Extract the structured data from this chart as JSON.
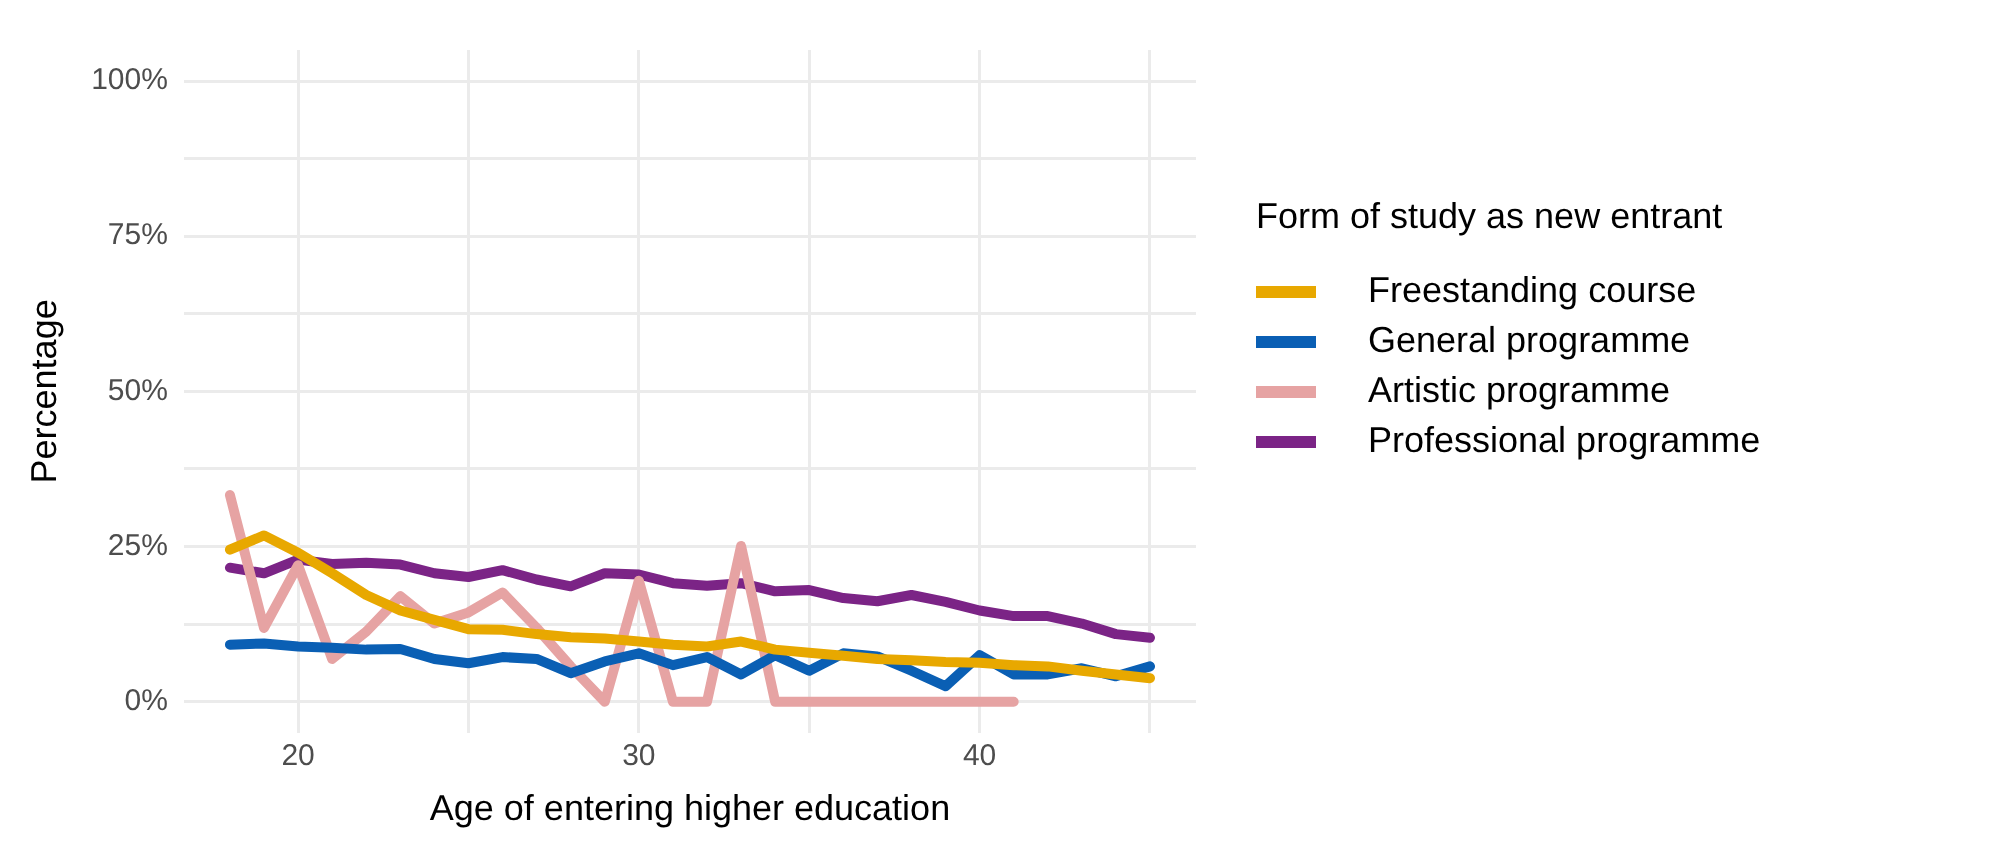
{
  "chart_data": {
    "type": "line",
    "xlabel": "Age of entering higher education",
    "ylabel": "Percentage",
    "legend_title": "Form of study as new entrant",
    "x": [
      18,
      19,
      20,
      21,
      22,
      23,
      24,
      25,
      26,
      27,
      28,
      29,
      30,
      31,
      32,
      33,
      34,
      35,
      36,
      37,
      38,
      39,
      40,
      41,
      42,
      43,
      44,
      45
    ],
    "series": [
      {
        "name": "Freestanding course",
        "color": "#e8a800",
        "values": [
          24.5,
          26.8,
          24,
          20.7,
          17.2,
          14.7,
          13.2,
          11.7,
          11.6,
          10.9,
          10.4,
          10.2,
          9.7,
          9.2,
          8.9,
          9.7,
          8.4,
          7.9,
          7.4,
          6.9,
          6.7,
          6.4,
          6.3,
          5.9,
          5.7,
          5.0,
          4.4,
          3.8
        ]
      },
      {
        "name": "General programme",
        "color": "#0a5fb4",
        "values": [
          9.2,
          9.4,
          8.9,
          8.7,
          8.4,
          8.5,
          6.9,
          6.2,
          7.2,
          6.9,
          4.6,
          6.5,
          7.8,
          5.9,
          7.2,
          4.4,
          7.5,
          5.0,
          7.8,
          7.3,
          5.0,
          2.5,
          7.5,
          4.4,
          4.4,
          5.4,
          4.1,
          5.7
        ]
      },
      {
        "name": "Artistic programme",
        "color": "#e6a3a3",
        "values": [
          33.3,
          11.9,
          22,
          6.9,
          11.3,
          17,
          12.6,
          14.4,
          17.6,
          11.9,
          5.7,
          0,
          19.5,
          0,
          0,
          25.1,
          0,
          0,
          0,
          0,
          0,
          0,
          0,
          0,
          null,
          null,
          null,
          null
        ]
      },
      {
        "name": "Professional programme",
        "color": "#7b2486",
        "values": [
          21.6,
          20.7,
          22.9,
          22.2,
          22.4,
          22.1,
          20.7,
          20.1,
          21.2,
          19.7,
          18.6,
          20.7,
          20.5,
          19.1,
          18.7,
          19.1,
          17.8,
          18.0,
          16.7,
          16.2,
          17.2,
          16.1,
          14.7,
          13.8,
          13.8,
          12.6,
          10.9,
          10.3
        ]
      }
    ],
    "xlim": [
      16.65,
      46.35
    ],
    "xticks": [
      20,
      {
        "value": 25,
        "label": null
      },
      30,
      {
        "value": 35,
        "label": null
      },
      40,
      {
        "value": 45,
        "label": null
      }
    ],
    "ylim": [
      -5,
      105
    ],
    "yticks": [
      {
        "value": 0,
        "label": "0%"
      },
      {
        "value": 12.5,
        "label": null
      },
      {
        "value": 25,
        "label": "25%"
      },
      {
        "value": 37.5,
        "label": null
      },
      {
        "value": 50,
        "label": "50%"
      },
      {
        "value": 62.5,
        "label": null
      },
      {
        "value": 75,
        "label": "75%"
      },
      {
        "value": 87.5,
        "label": null
      },
      {
        "value": 100,
        "label": "100%"
      }
    ],
    "grid": true,
    "legend": "right",
    "marker": "none",
    "line_style": "solid"
  }
}
